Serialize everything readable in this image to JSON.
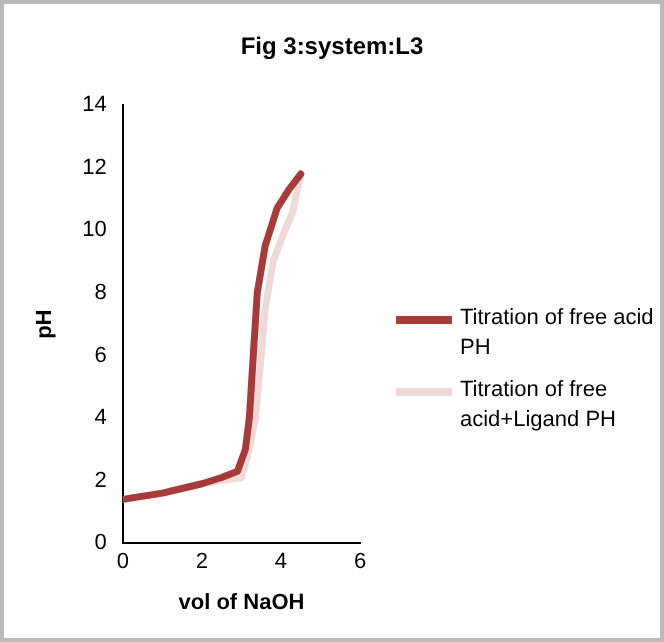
{
  "chart_data": {
    "type": "line",
    "title": "Fig 3:system:L3",
    "xlabel": "vol of NaOH",
    "ylabel": "pH",
    "xlim": [
      0,
      6
    ],
    "xticks": [
      0,
      2,
      4,
      6
    ],
    "ylim": [
      0,
      14
    ],
    "yticks": [
      0,
      2,
      4,
      6,
      8,
      10,
      12,
      14
    ],
    "grid": false,
    "legend": "right",
    "marker": "none",
    "series": [
      {
        "name": "Titration of free acid PH",
        "color": "#a93a3a",
        "x": [
          0,
          1,
          2,
          2.5,
          2.9,
          3.1,
          3.2,
          3.3,
          3.4,
          3.6,
          3.9,
          4.2,
          4.5
        ],
        "values": [
          1.4,
          1.6,
          1.9,
          2.1,
          2.3,
          3,
          4,
          6,
          8,
          9.5,
          10.7,
          11.3,
          11.8
        ]
      },
      {
        "name": "Titration of free acid+Ligand PH",
        "color": "#efd9d9",
        "x": [
          0,
          1,
          2,
          2.5,
          3,
          3.2,
          3.35,
          3.5,
          3.6,
          3.8,
          4.1,
          4.3,
          4.5
        ],
        "values": [
          1.4,
          1.6,
          1.9,
          2,
          2.1,
          3,
          4,
          6,
          7.5,
          9,
          10,
          10.6,
          11.8
        ]
      }
    ]
  }
}
